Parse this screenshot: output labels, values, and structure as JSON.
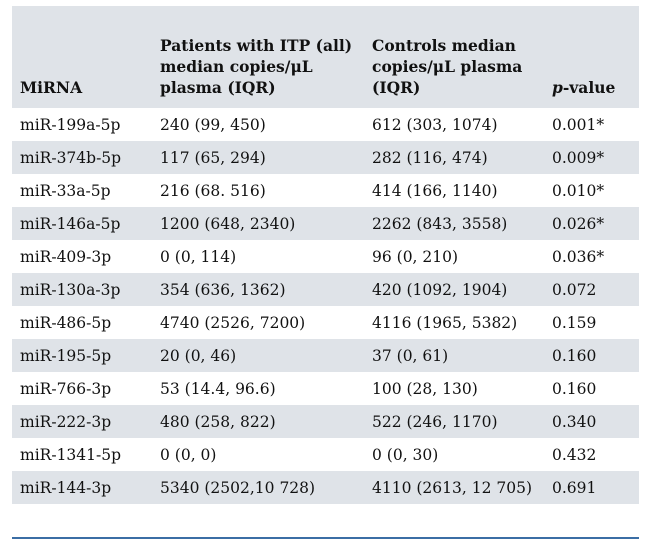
{
  "table": {
    "headers": {
      "mirna": "MiRNA",
      "patients": "Patients with ITP (all) median copies/μL plasma (IQR)",
      "controls": "Controls median copies/μL plasma (IQR)",
      "pvalue_italic": "p",
      "pvalue_rest": "-value"
    },
    "rows": [
      {
        "mirna": "miR-199a-5p",
        "patients": "240 (99, 450)",
        "controls": "612 (303, 1074)",
        "pvalue": "0.001*"
      },
      {
        "mirna": "miR-374b-5p",
        "patients": "117 (65, 294)",
        "controls": "282 (116, 474)",
        "pvalue": "0.009*"
      },
      {
        "mirna": "miR-33a-5p",
        "patients": "216 (68. 516)",
        "controls": "414 (166, 1140)",
        "pvalue": "0.010*"
      },
      {
        "mirna": "miR-146a-5p",
        "patients": "1200 (648, 2340)",
        "controls": "2262 (843, 3558)",
        "pvalue": "0.026*"
      },
      {
        "mirna": "miR-409-3p",
        "patients": "0 (0, 114)",
        "controls": "96 (0, 210)",
        "pvalue": "0.036*"
      },
      {
        "mirna": "miR-130a-3p",
        "patients": "354 (636, 1362)",
        "controls": "420 (1092, 1904)",
        "pvalue": "0.072"
      },
      {
        "mirna": "miR-486-5p",
        "patients": "4740 (2526, 7200)",
        "controls": "4116 (1965, 5382)",
        "pvalue": "0.159"
      },
      {
        "mirna": "miR-195-5p",
        "patients": "20 (0, 46)",
        "controls": "37 (0, 61)",
        "pvalue": "0.160"
      },
      {
        "mirna": "miR-766-3p",
        "patients": "53 (14.4, 96.6)",
        "controls": "100 (28, 130)",
        "pvalue": "0.160"
      },
      {
        "mirna": "miR-222-3p",
        "patients": "480 (258, 822)",
        "controls": "522 (246, 1170)",
        "pvalue": "0.340"
      },
      {
        "mirna": "miR-1341-5p",
        "patients": "0 (0, 0)",
        "controls": "0 (0, 30)",
        "pvalue": "0.432"
      },
      {
        "mirna": "miR-144-3p",
        "patients": "5340 (2502,10 728)",
        "controls": "4110 (2613, 12 705)",
        "pvalue": "0.691"
      }
    ]
  },
  "colors": {
    "shade": "#dfe3e8",
    "rule": "#3b6ea5"
  }
}
